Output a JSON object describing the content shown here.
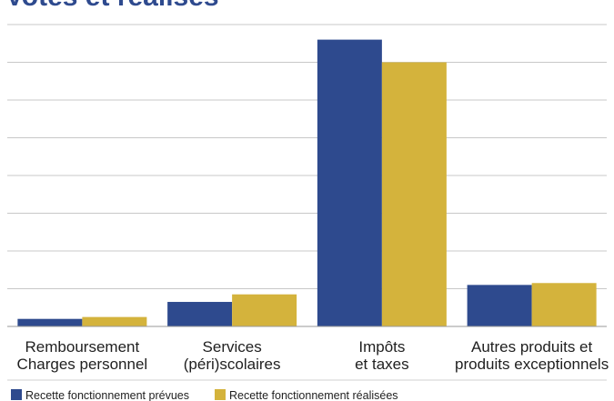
{
  "chart_data": {
    "type": "bar",
    "title": "",
    "title_fragment": "Votes et réalisés",
    "categories": [
      [
        "Remboursement",
        "Charges personnel"
      ],
      [
        "Services",
        "(péri)scolaires"
      ],
      [
        "Impôts",
        "et taxes"
      ],
      [
        "Autres produits et",
        "produits exceptionnels"
      ]
    ],
    "series": [
      {
        "name": "Recette fonctionnement prévues",
        "color": "#2e4a8e",
        "values": [
          0.2,
          0.65,
          7.6,
          1.1
        ]
      },
      {
        "name": "Recette fonctionnement réalisées",
        "color": "#d4b33c",
        "values": [
          0.25,
          0.85,
          7.0,
          1.15
        ]
      }
    ],
    "ylim": [
      0,
      8
    ],
    "grid": true,
    "gridlines": 8,
    "legend_position": "bottom-left",
    "xlabel": "",
    "ylabel": ""
  }
}
